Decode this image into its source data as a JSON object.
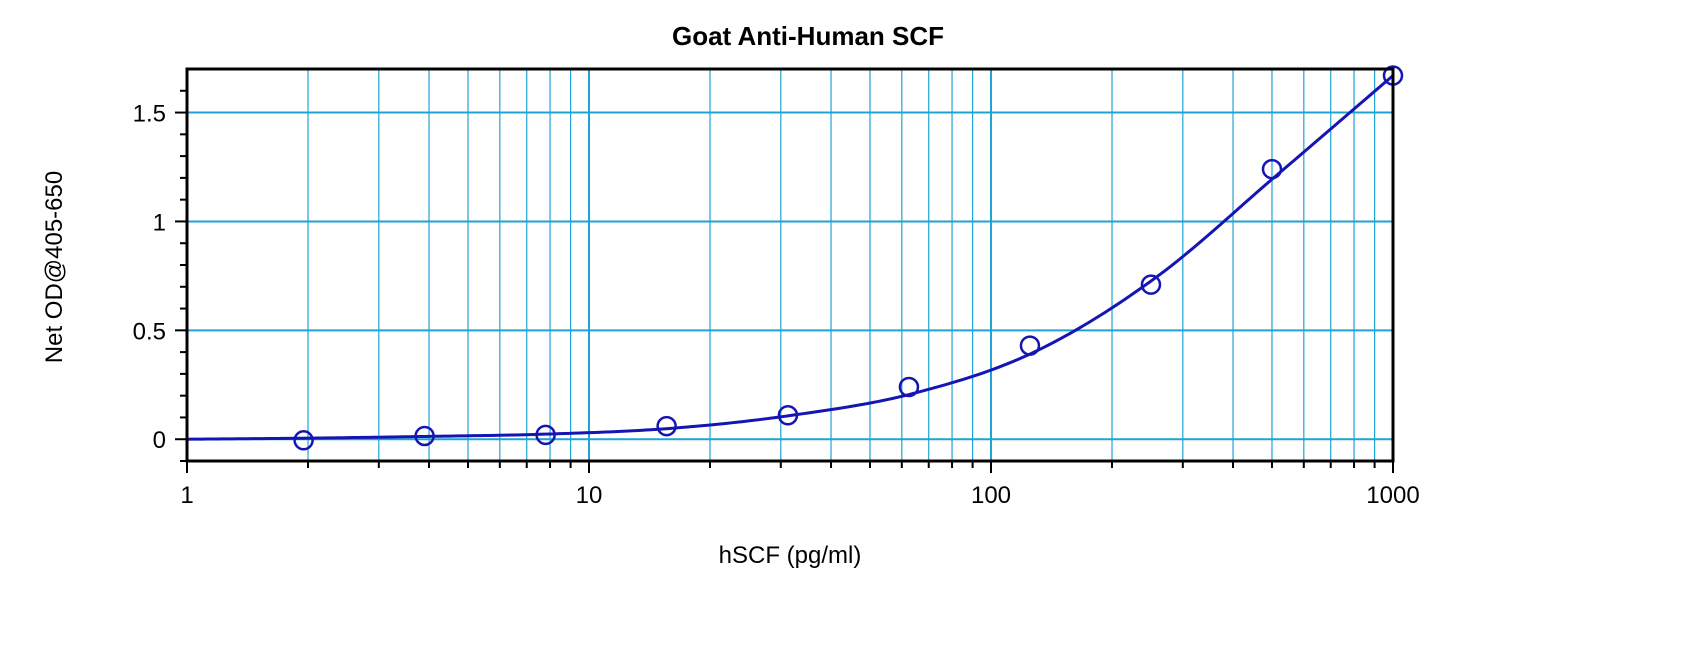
{
  "chart_data": {
    "type": "scatter",
    "title": "Goat Anti-Human SCF",
    "xlabel": "hSCF (pg/ml)",
    "ylabel": "Net OD@405-650",
    "x_scale": "log",
    "xlim": [
      1,
      1000
    ],
    "ylim": [
      -0.1,
      1.7
    ],
    "x_ticks": [
      1,
      10,
      100,
      1000
    ],
    "x_tick_labels": [
      "1",
      "10",
      "100",
      "1000"
    ],
    "y_ticks": [
      0,
      0.5,
      1,
      1.5
    ],
    "y_tick_labels": [
      "0",
      "0.5",
      "1",
      "1.5"
    ],
    "grid": true,
    "series": [
      {
        "points": [
          {
            "x": 1.95,
            "y": -0.005
          },
          {
            "x": 3.9,
            "y": 0.015
          },
          {
            "x": 7.8,
            "y": 0.02
          },
          {
            "x": 15.6,
            "y": 0.06
          },
          {
            "x": 31.25,
            "y": 0.11
          },
          {
            "x": 62.5,
            "y": 0.24
          },
          {
            "x": 125,
            "y": 0.43
          },
          {
            "x": 250,
            "y": 0.71
          },
          {
            "x": 500,
            "y": 1.24
          },
          {
            "x": 1000,
            "y": 1.67
          }
        ],
        "marker": "open-circle",
        "fit_curve": {
          "x": [
            1,
            2,
            4,
            8,
            16,
            32,
            64,
            128,
            256,
            512,
            1000
          ],
          "y": [
            0.0,
            0.005,
            0.013,
            0.024,
            0.05,
            0.11,
            0.21,
            0.4,
            0.74,
            1.21,
            1.67
          ]
        },
        "color": "#1515b4"
      }
    ],
    "colors": {
      "grid": "#1fa3d6",
      "series": "#1515b4",
      "frame": "#000000"
    }
  }
}
